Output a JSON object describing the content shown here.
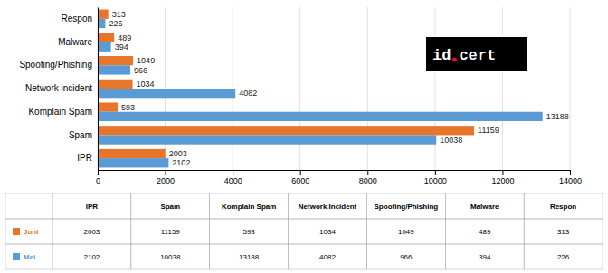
{
  "chart_data": {
    "type": "bar",
    "orientation": "horizontal",
    "categories": [
      "IPR",
      "Spam",
      "Komplain Spam",
      "Network incident",
      "Spoofing/Phishing",
      "Malware",
      "Respon"
    ],
    "series": [
      {
        "name": "Juni",
        "color": "#E8762A",
        "values": [
          2003,
          11159,
          593,
          1034,
          1049,
          489,
          313
        ]
      },
      {
        "name": "Mei",
        "color": "#5B9BD5",
        "values": [
          2102,
          10038,
          13188,
          4082,
          966,
          394,
          226
        ]
      }
    ],
    "xlim": [
      0,
      14000
    ],
    "xticks": [
      0,
      2000,
      4000,
      6000,
      8000,
      10000,
      12000,
      14000
    ],
    "grid": true,
    "data_labels": true,
    "annotations": [
      "id",
      "cert"
    ],
    "table": {
      "columns": [
        "IPR",
        "Spam",
        "Komplain Spam",
        "Network Incident",
        "Spoofing/Phishing",
        "Malware",
        "Respon"
      ]
    }
  }
}
